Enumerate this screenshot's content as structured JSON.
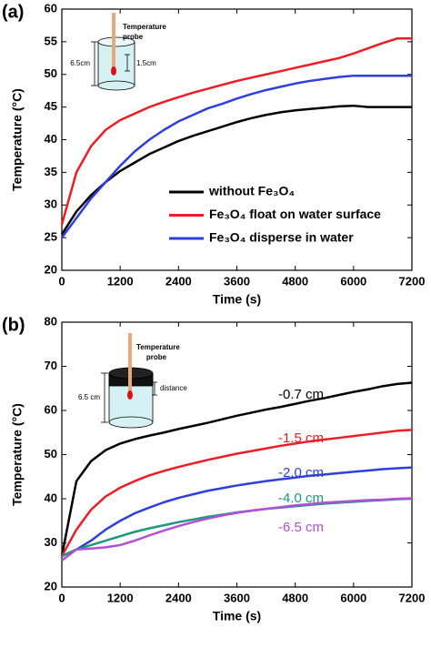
{
  "chart_data": [
    {
      "type": "line",
      "panel_label": "(a)",
      "xlabel": "Time (s)",
      "ylabel": "Temperature (°C)",
      "xlim": [
        0,
        7200
      ],
      "xticks": [
        0,
        1200,
        2400,
        3600,
        4800,
        6000,
        7200
      ],
      "ylim": [
        20,
        60
      ],
      "yticks": [
        20,
        25,
        30,
        35,
        40,
        45,
        50,
        55,
        60
      ],
      "legend": "lower right",
      "inset_labels": [
        "Temperature",
        "probe",
        "6.5cm",
        "1.5cm"
      ],
      "x": [
        0,
        300,
        600,
        900,
        1200,
        1500,
        1800,
        2100,
        2400,
        2700,
        3000,
        3300,
        3600,
        3900,
        4200,
        4500,
        4800,
        5100,
        5400,
        5700,
        6000,
        6300,
        6600,
        6900,
        7200
      ],
      "series": [
        {
          "name": "without Fe₃O₄",
          "color": "#000000",
          "values": [
            25.5,
            29,
            31.5,
            33.5,
            35.2,
            36.5,
            37.8,
            38.8,
            39.8,
            40.6,
            41.3,
            42,
            42.7,
            43.3,
            43.8,
            44.2,
            44.5,
            44.7,
            44.9,
            45.1,
            45.2,
            45,
            45,
            45,
            45
          ]
        },
        {
          "name": "Fe₃O₄ float on water surface",
          "color": "#ee1c24",
          "values": [
            27,
            35,
            39,
            41.5,
            43,
            44,
            45,
            45.8,
            46.5,
            47.2,
            47.8,
            48.4,
            49,
            49.5,
            50,
            50.5,
            51,
            51.5,
            52,
            52.5,
            53.2,
            54,
            54.8,
            55.5,
            55.5
          ]
        },
        {
          "name": "Fe₃O₄ disperse in water",
          "color": "#2e3fe0",
          "values": [
            25,
            28,
            31,
            33.5,
            36,
            38.2,
            40,
            41.5,
            42.8,
            43.8,
            44.8,
            45.5,
            46.3,
            47,
            47.6,
            48.1,
            48.6,
            49,
            49.3,
            49.6,
            49.8,
            49.8,
            49.8,
            49.8,
            49.8
          ]
        }
      ]
    },
    {
      "type": "line",
      "panel_label": "(b)",
      "xlabel": "Time (s)",
      "ylabel": "Temperature (°C)",
      "xlim": [
        0,
        7200
      ],
      "xticks": [
        0,
        1200,
        2400,
        3600,
        4800,
        6000,
        7200
      ],
      "ylim": [
        20,
        80
      ],
      "yticks": [
        20,
        30,
        40,
        50,
        60,
        70,
        80
      ],
      "inset_labels": [
        "Temperature",
        "probe",
        "6.5 cm",
        "distance"
      ],
      "x": [
        0,
        300,
        600,
        900,
        1200,
        1500,
        1800,
        2100,
        2400,
        2700,
        3000,
        3300,
        3600,
        3900,
        4200,
        4500,
        4800,
        5100,
        5400,
        5700,
        6000,
        6300,
        6600,
        6900,
        7200
      ],
      "series": [
        {
          "name": "-0.7 cm",
          "color": "#000000",
          "values": [
            27,
            44,
            48.5,
            51,
            52.5,
            53.5,
            54.3,
            55,
            55.8,
            56.5,
            57.2,
            58,
            58.8,
            59.5,
            60.2,
            60.8,
            61.5,
            62.2,
            62.8,
            63.5,
            64.2,
            64.8,
            65.5,
            66,
            66.3
          ]
        },
        {
          "name": "-1.5 cm",
          "color": "#ee1c24",
          "values": [
            27,
            33,
            37.5,
            40.5,
            42.5,
            44,
            45.3,
            46.3,
            47.2,
            48,
            48.8,
            49.5,
            50.2,
            50.8,
            51.4,
            52,
            52.5,
            53,
            53.4,
            53.8,
            54.2,
            54.6,
            55,
            55.4,
            55.6
          ]
        },
        {
          "name": "-2.0 cm",
          "color": "#2e3fe0",
          "values": [
            27,
            28.5,
            30.5,
            33,
            35,
            36.7,
            38,
            39.2,
            40.2,
            41,
            41.8,
            42.4,
            43,
            43.5,
            44,
            44.4,
            44.8,
            45.2,
            45.5,
            45.8,
            46.1,
            46.4,
            46.7,
            46.9,
            47.1
          ]
        },
        {
          "name": "-4.0 cm",
          "color": "#1a9a7a",
          "values": [
            27,
            28.5,
            29.5,
            30.5,
            31.5,
            32.5,
            33.3,
            34,
            34.7,
            35.3,
            35.9,
            36.4,
            36.9,
            37.3,
            37.7,
            38,
            38.3,
            38.6,
            38.9,
            39.1,
            39.3,
            39.5,
            39.7,
            39.9,
            40
          ]
        },
        {
          "name": "-6.5 cm",
          "color": "#b34fd6",
          "values": [
            26,
            28.5,
            28.7,
            29,
            29.5,
            30.5,
            31.7,
            32.8,
            33.8,
            34.7,
            35.5,
            36.2,
            36.8,
            37.3,
            37.7,
            38.1,
            38.5,
            38.8,
            39.1,
            39.3,
            39.5,
            39.7,
            39.8,
            40,
            40.1
          ]
        }
      ]
    }
  ]
}
